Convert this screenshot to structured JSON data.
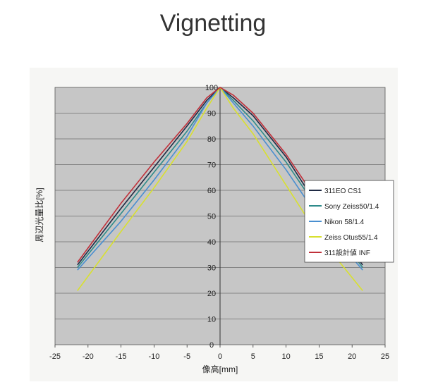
{
  "title": "Vignetting",
  "chart_data": {
    "type": "line",
    "xlabel": "像高[mm]",
    "ylabel": "周辺光量比[%]",
    "xlim": [
      -25,
      25
    ],
    "ylim": [
      0,
      100
    ],
    "xticks": [
      -25,
      -20,
      -15,
      -10,
      -5,
      0,
      5,
      10,
      15,
      20,
      25
    ],
    "yticks": [
      0,
      10,
      20,
      30,
      40,
      50,
      60,
      70,
      80,
      90,
      100
    ],
    "grid": "horizontal",
    "legend_position": "right",
    "series": [
      {
        "name": "311EO CS1",
        "color": "#1f2a44",
        "points": [
          [
            -21.6,
            31
          ],
          [
            -15,
            53
          ],
          [
            -10,
            69
          ],
          [
            -5,
            85
          ],
          [
            -2,
            95
          ],
          [
            0,
            100
          ],
          [
            2,
            96
          ],
          [
            5,
            89
          ],
          [
            10,
            73
          ],
          [
            15,
            53
          ],
          [
            21.6,
            31
          ]
        ]
      },
      {
        "name": "Sony Zeiss50/1.4",
        "color": "#2e8b8b",
        "points": [
          [
            -21.6,
            30
          ],
          [
            -15,
            51
          ],
          [
            -10,
            67
          ],
          [
            -5,
            83
          ],
          [
            -2,
            94
          ],
          [
            0,
            100
          ],
          [
            2,
            95
          ],
          [
            5,
            87
          ],
          [
            10,
            71
          ],
          [
            15,
            52
          ],
          [
            21.6,
            30
          ]
        ]
      },
      {
        "name": "Nikon 58/1.4",
        "color": "#4a8fd0",
        "points": [
          [
            -21.6,
            29
          ],
          [
            -15,
            48
          ],
          [
            -10,
            64
          ],
          [
            -5,
            81
          ],
          [
            -2,
            94
          ],
          [
            0,
            100
          ],
          [
            2,
            94
          ],
          [
            5,
            85
          ],
          [
            10,
            68
          ],
          [
            15,
            49
          ],
          [
            21.6,
            29
          ]
        ]
      },
      {
        "name": "Zeiss Otus55/1.4",
        "color": "#d8e030",
        "points": [
          [
            -21.6,
            21
          ],
          [
            -15,
            44
          ],
          [
            -10,
            61
          ],
          [
            -5,
            79
          ],
          [
            -2,
            92
          ],
          [
            0,
            100
          ],
          [
            2,
            92
          ],
          [
            5,
            82
          ],
          [
            10,
            62
          ],
          [
            15,
            42
          ],
          [
            21.6,
            21
          ]
        ]
      },
      {
        "name": "311設計値 INF",
        "color": "#c0303a",
        "points": [
          [
            -21.6,
            32
          ],
          [
            -15,
            55
          ],
          [
            -10,
            71
          ],
          [
            -5,
            86
          ],
          [
            -2,
            96
          ],
          [
            0,
            100
          ],
          [
            2,
            97
          ],
          [
            5,
            90
          ],
          [
            10,
            74
          ],
          [
            15,
            55
          ],
          [
            21.6,
            32
          ]
        ]
      }
    ]
  }
}
